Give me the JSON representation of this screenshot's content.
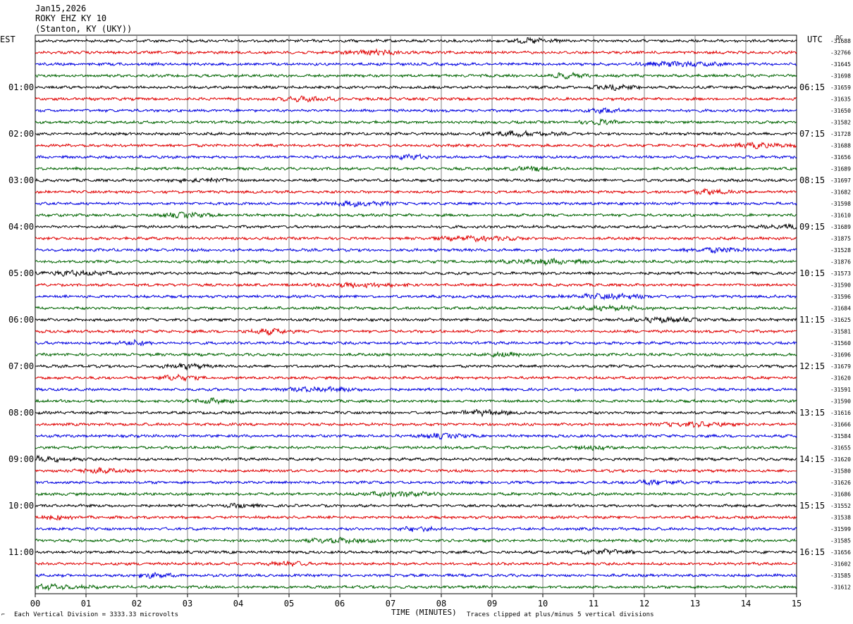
{
  "header": {
    "date": "Jan15,2026",
    "station": "ROKY EHZ KY 10",
    "location": "(Stanton, KY (UKY))"
  },
  "left_tz": "EST",
  "right_tz": "UTC",
  "dc_label": "DC",
  "footer": {
    "scale_note": "Each Vertical Division = 3333.33 microvolts",
    "clip_note": "Traces clipped at plus/minus 5 vertical divisions",
    "scale_mark": "⌐"
  },
  "colors": {
    "trace_cycle": [
      "#000000",
      "#e00000",
      "#0000e0",
      "#006400"
    ],
    "grid": "#808080"
  },
  "chart_data": {
    "type": "line",
    "xlabel": "TIME (MINUTES)",
    "x_ticks": [
      "00",
      "01",
      "02",
      "03",
      "04",
      "05",
      "06",
      "07",
      "08",
      "09",
      "10",
      "11",
      "12",
      "13",
      "14",
      "15"
    ],
    "xlim": [
      0,
      15
    ],
    "trace_count": 48,
    "left_hour_labels": [
      "01:00",
      "02:00",
      "03:00",
      "04:00",
      "05:00",
      "06:00",
      "07:00",
      "08:00",
      "09:00",
      "10:00",
      "11:00"
    ],
    "right_hour_labels": [
      "06:15",
      "07:15",
      "08:15",
      "09:15",
      "10:15",
      "11:15",
      "12:15",
      "13:15",
      "14:15",
      "15:15",
      "16:15"
    ],
    "dc_offsets": [
      "-31688",
      "-32766",
      "-31645",
      "-31698",
      "-31659",
      "-31635",
      "-31650",
      "-31582",
      "-31728",
      "-31688",
      "-31656",
      "-31689",
      "-31697",
      "-31682",
      "-31598",
      "-31610",
      "-31689",
      "-31875",
      "-31528",
      "-31876",
      "-31573",
      "-31590",
      "-31596",
      "-31684",
      "-31625",
      "-31581",
      "-31560",
      "-31696",
      "-31679",
      "-31620",
      "-31591",
      "-31590",
      "-31616",
      "-31666",
      "-31584",
      "-31655",
      "-31620",
      "-31580",
      "-31626",
      "-31686",
      "-31552",
      "-31538",
      "-31599",
      "-31585",
      "-31656",
      "-31602",
      "-31585",
      "-31612"
    ]
  }
}
